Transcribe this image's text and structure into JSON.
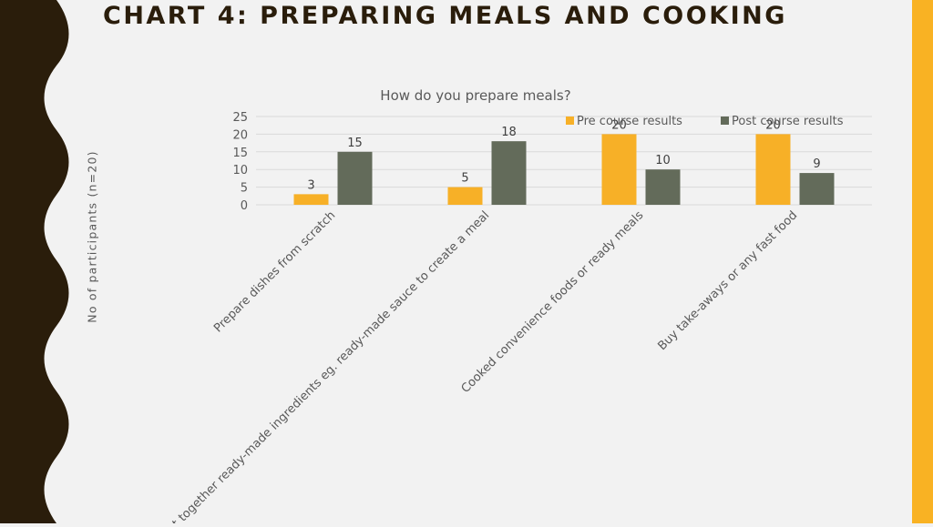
{
  "slide": {
    "title": "CHART 4: PREPARING MEALS AND COOKING"
  },
  "colors": {
    "pre": "#f7b027",
    "post": "#636b5a",
    "accent_bar": "#f9b223",
    "dark_band": "#2a1d0b",
    "gridline": "#d9d9d9",
    "text": "#595959"
  },
  "chart_data": {
    "type": "bar",
    "title": "How do you prepare meals?",
    "ylabel": "No of participants (n=20)",
    "xlabel": "",
    "categories": [
      "Prepare dishes from scratch",
      "Put together ready-made ingredients eg. ready-made sauce to create a meal",
      "Cooked convenience foods or ready meals",
      "Buy take-aways or any fast food"
    ],
    "series": [
      {
        "name": "Pre course results",
        "values": [
          3,
          5,
          20,
          20
        ]
      },
      {
        "name": "Post course results",
        "values": [
          15,
          18,
          10,
          9
        ]
      }
    ],
    "ylim": [
      0,
      25
    ],
    "yticks": [
      0,
      5,
      10,
      15,
      20,
      25
    ],
    "grid": true,
    "legend_position": "top-right",
    "data_labels": true
  }
}
